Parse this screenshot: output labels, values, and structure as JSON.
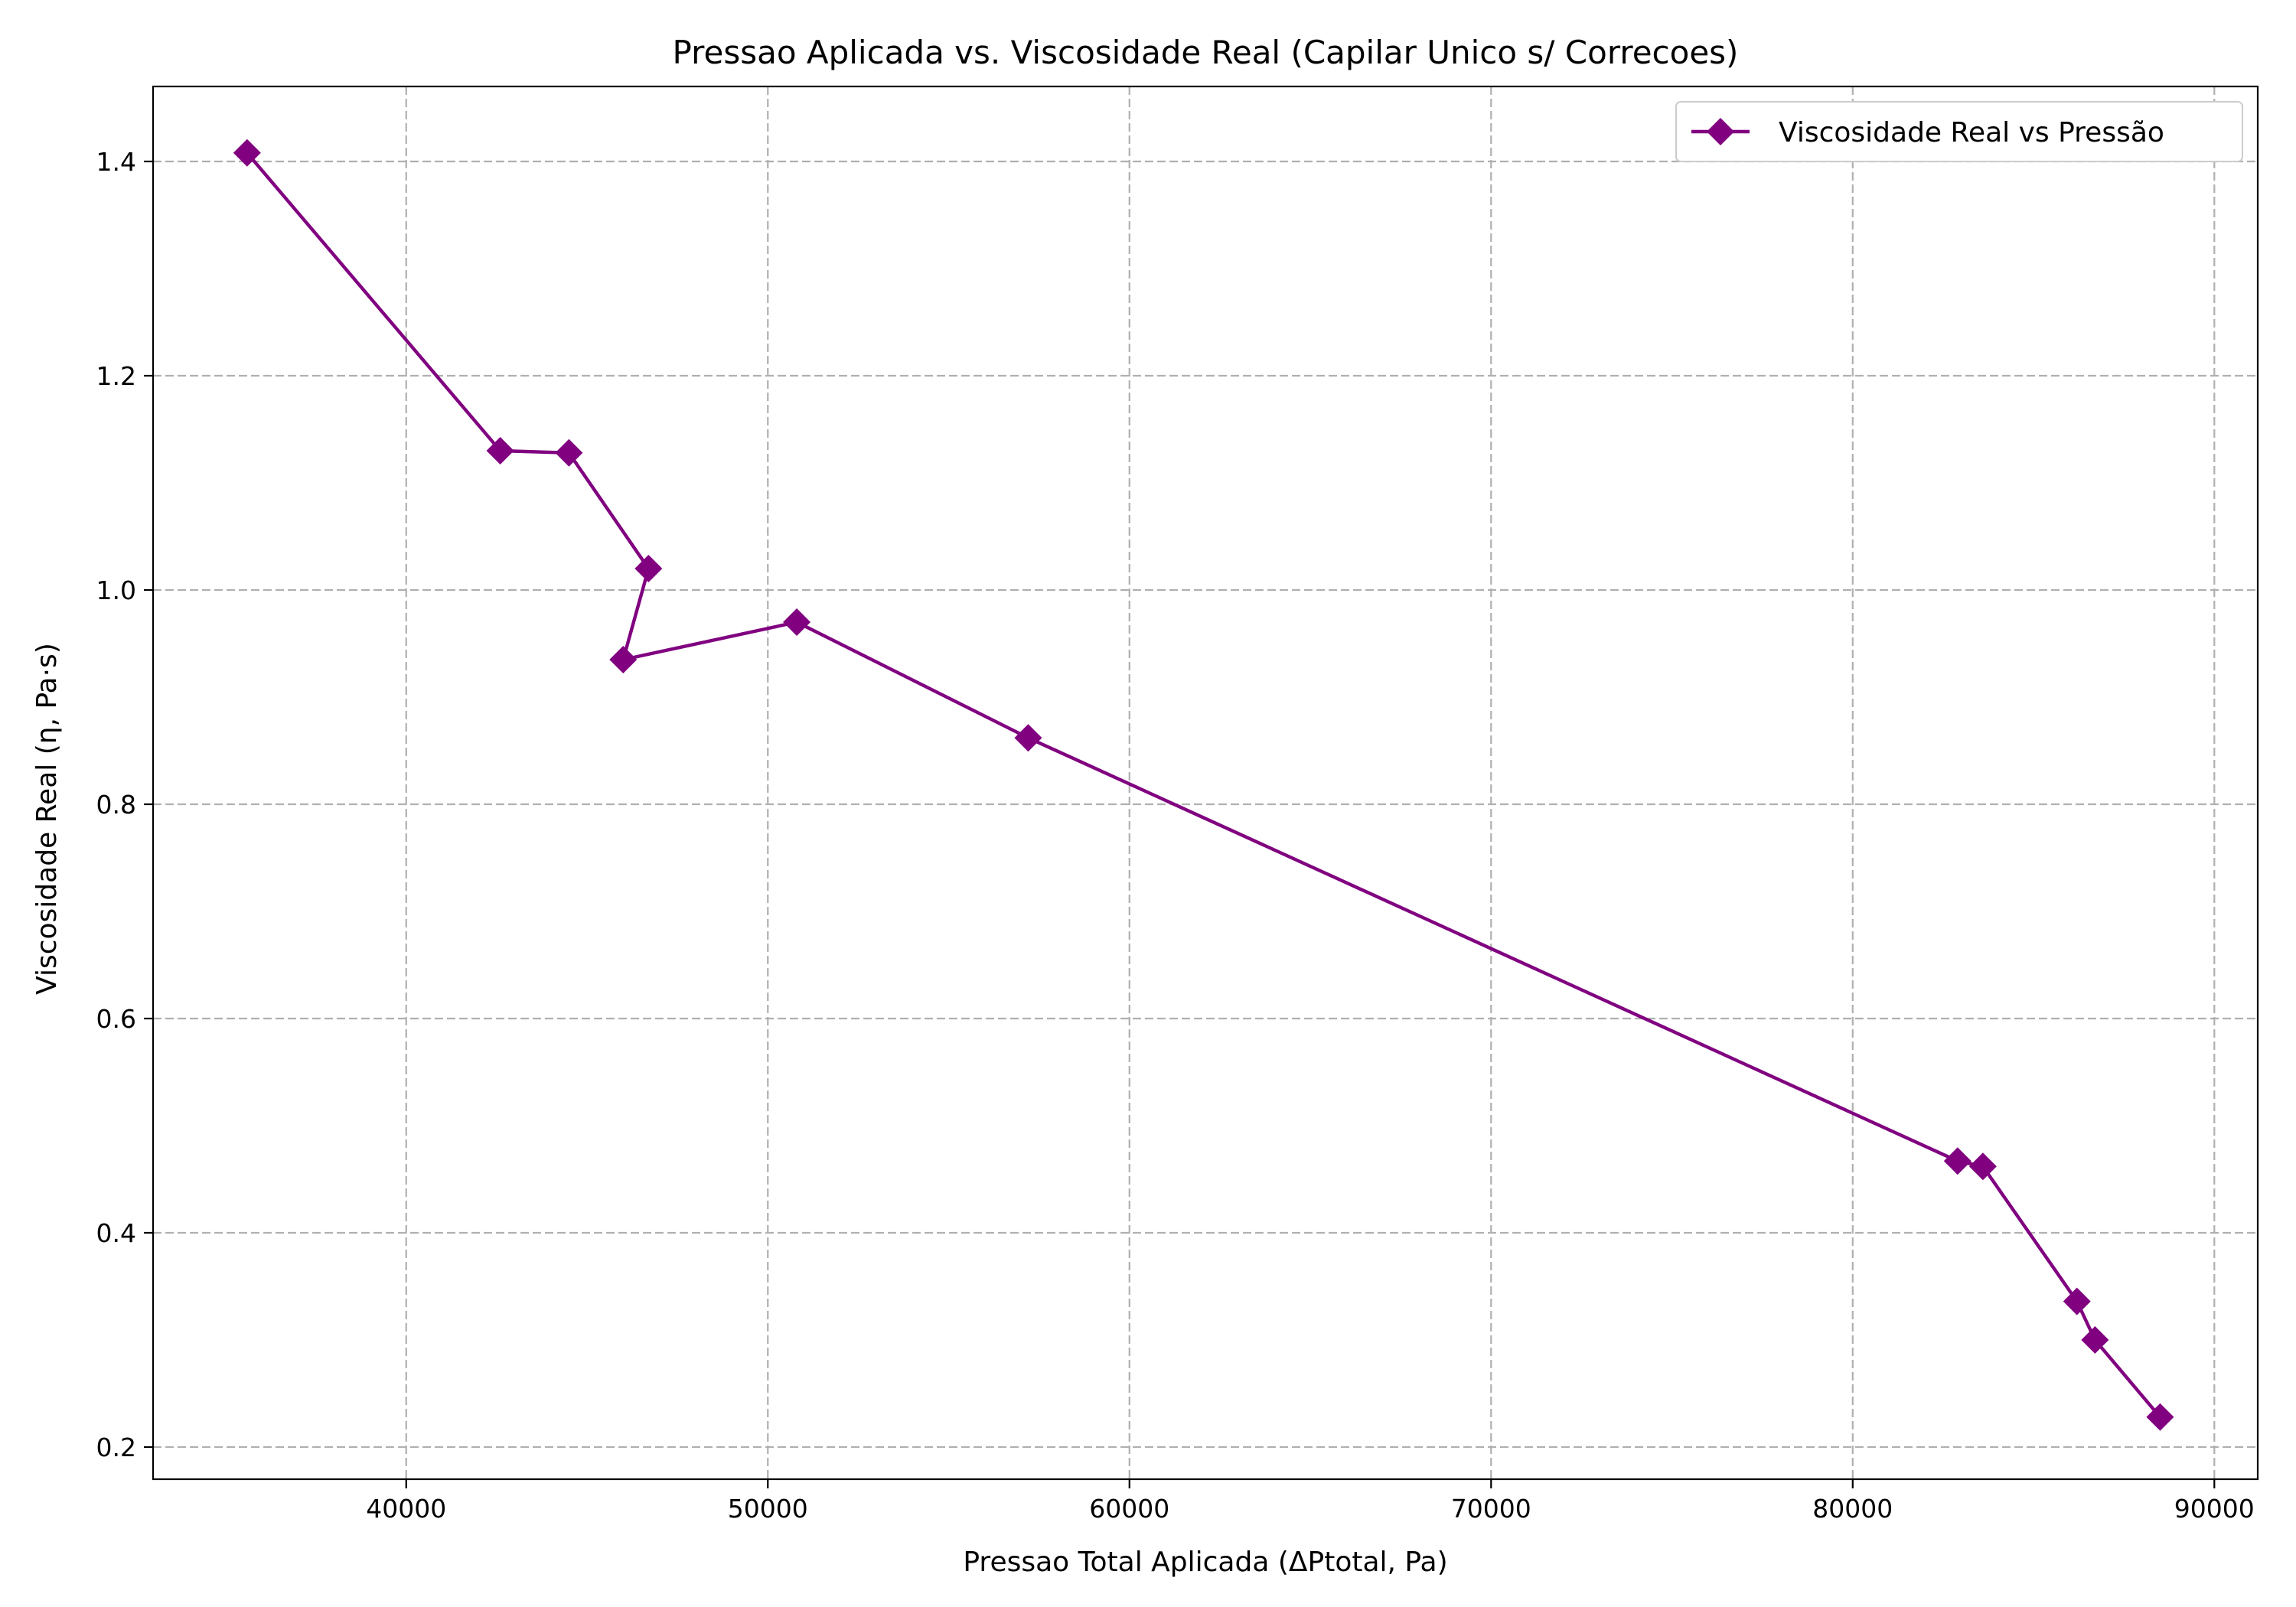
{
  "chart_data": {
    "type": "line",
    "title": "Pressao Aplicada vs. Viscosidade Real (Capilar Unico s/ Correcoes)",
    "xlabel": "Pressao Total Aplicada (ΔPtotal, Pa)",
    "ylabel": "Viscosidade Real (η, Pa·s)",
    "xlim": [
      33000,
      91200
    ],
    "ylim": [
      0.17,
      1.47
    ],
    "xticks": [
      40000,
      50000,
      60000,
      70000,
      80000,
      90000
    ],
    "yticks": [
      0.2,
      0.4,
      0.6,
      0.8,
      1.0,
      1.2,
      1.4
    ],
    "grid": true,
    "legend_position": "top-right",
    "series": [
      {
        "name": "Viscosidade Real vs Pressão",
        "color": "#800080",
        "marker": "diamond",
        "x": [
          35600,
          42600,
          44500,
          46700,
          46000,
          50800,
          57200,
          82900,
          83600,
          86200,
          86700,
          88500
        ],
        "y": [
          1.408,
          1.13,
          1.128,
          1.02,
          0.935,
          0.97,
          0.862,
          0.467,
          0.462,
          0.336,
          0.3,
          0.228
        ]
      }
    ]
  }
}
